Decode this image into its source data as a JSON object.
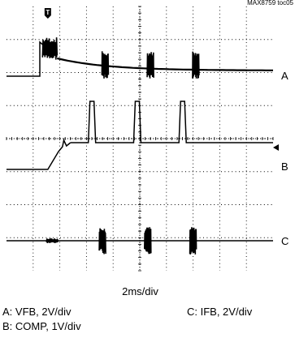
{
  "figure_id": "MAX8759 toc05",
  "chart_data": {
    "type": "line",
    "title": "",
    "xlabel": "2ms/div",
    "grid": true,
    "x_divisions": 10,
    "y_divisions": 8,
    "trigger_marker": "T",
    "channels": [
      {
        "label": "A",
        "description": "A: VFB, 2V/div",
        "waveform": "startup spike at 1.2 div decaying toward baseline, burst packets at 3.7, 5.4 and 7.1 div"
      },
      {
        "label": "B",
        "description": "B: COMP, 1V/div",
        "waveform": "ramp up during startup at 1.0-1.6 div, periodic pulses at 3.1, 4.8 and 6.5 div"
      },
      {
        "label": "C",
        "description": "C: IFB, 2V/div",
        "waveform": "flat with small startup burst at 1.5 div, current bursts at 3.6, 5.3 and 7.0 div"
      }
    ]
  }
}
